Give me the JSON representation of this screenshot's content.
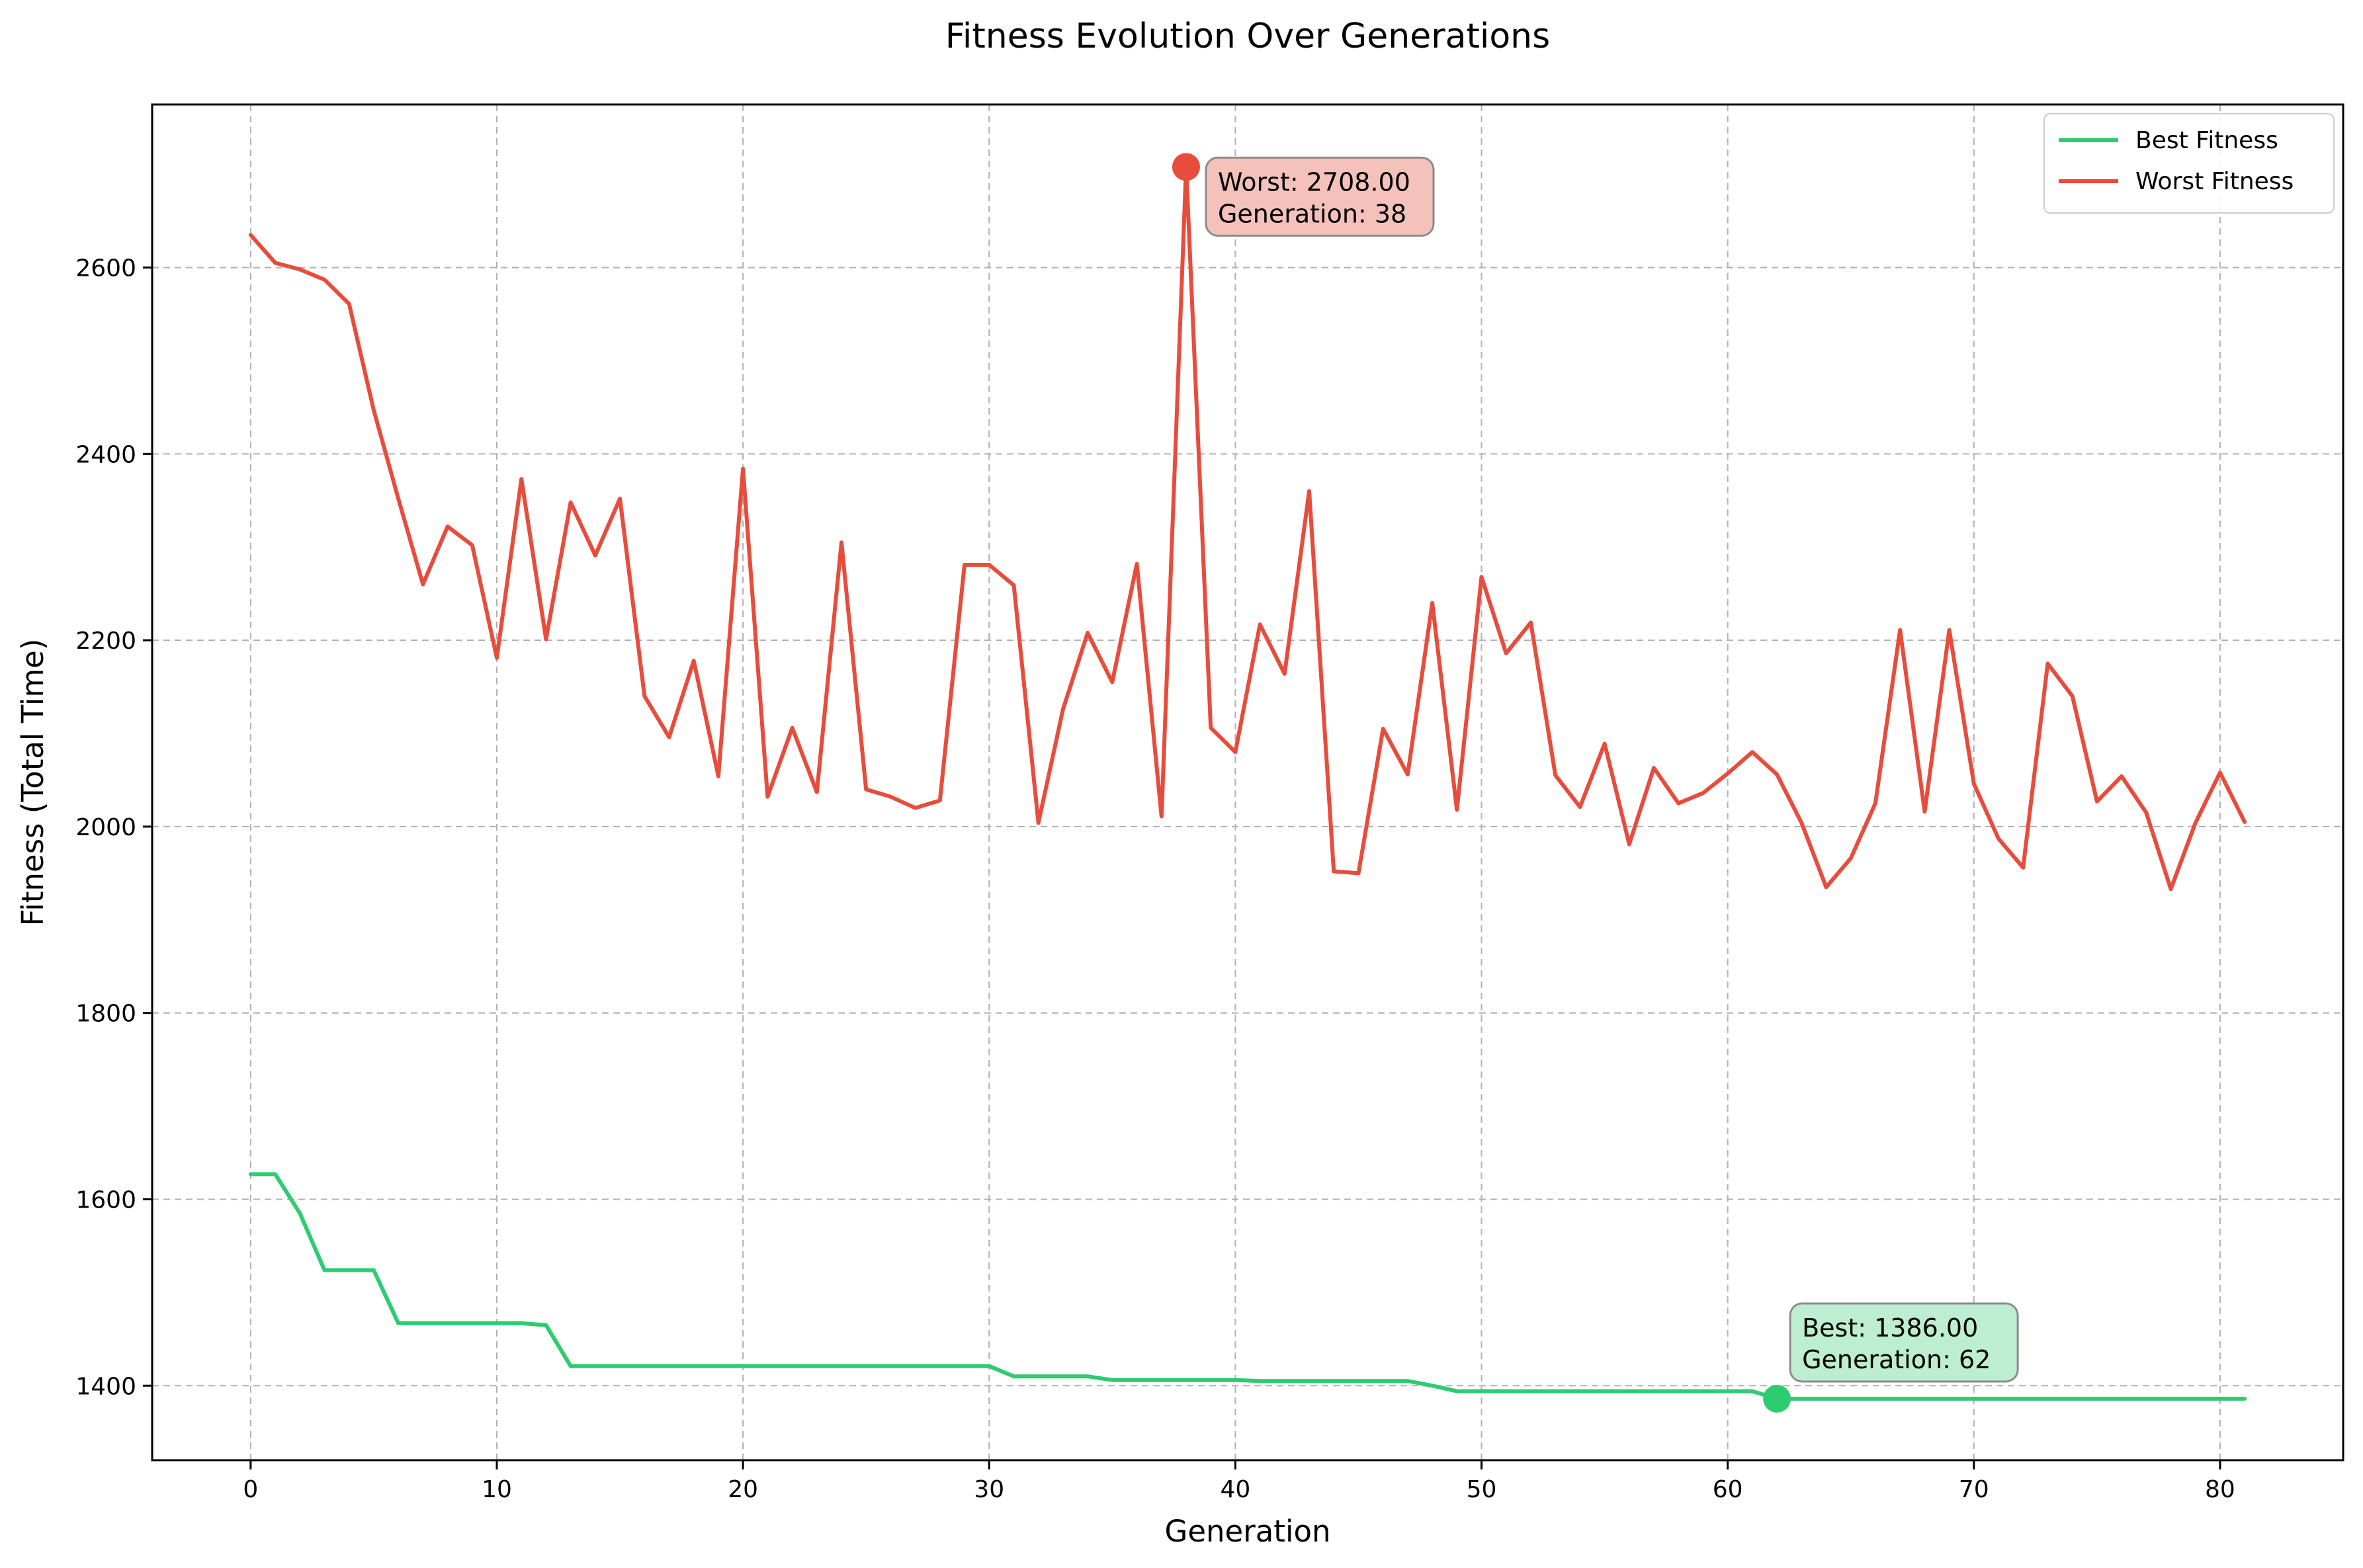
{
  "chart_data": {
    "type": "line",
    "title": "Fitness Evolution Over Generations",
    "xlabel": "Generation",
    "ylabel": "Fitness (Total Time)",
    "xlim": [
      -4,
      85
    ],
    "ylim": [
      1320,
      2775
    ],
    "xticks": [
      0,
      10,
      20,
      30,
      40,
      50,
      60,
      70,
      80
    ],
    "yticks": [
      1400,
      1600,
      1800,
      2000,
      2200,
      2400,
      2600
    ],
    "grid": true,
    "legend_position": "top-right",
    "series": [
      {
        "name": "Best Fitness",
        "color": "#2ecc71",
        "values": [
          1627,
          1627,
          1585,
          1524,
          1524,
          1524,
          1467,
          1467,
          1467,
          1467,
          1467,
          1467,
          1465,
          1421,
          1421,
          1421,
          1421,
          1421,
          1421,
          1421,
          1421,
          1421,
          1421,
          1421,
          1421,
          1421,
          1421,
          1421,
          1421,
          1421,
          1421,
          1410,
          1410,
          1410,
          1410,
          1406,
          1406,
          1406,
          1406,
          1406,
          1406,
          1405,
          1405,
          1405,
          1405,
          1405,
          1405,
          1405,
          1400,
          1394,
          1394,
          1394,
          1394,
          1394,
          1394,
          1394,
          1394,
          1394,
          1394,
          1394,
          1394,
          1394,
          1386,
          1386,
          1386,
          1386,
          1386,
          1386,
          1386,
          1386,
          1386,
          1386,
          1386,
          1386,
          1386,
          1386,
          1386,
          1386,
          1386,
          1386,
          1386,
          1386
        ]
      },
      {
        "name": "Worst Fitness",
        "color": "#e74c3c",
        "values": [
          2635,
          2605,
          2598,
          2587,
          2561,
          2447,
          2352,
          2260,
          2322,
          2302,
          2181,
          2373,
          2201,
          2348,
          2291,
          2352,
          2140,
          2096,
          2178,
          2054,
          2384,
          2032,
          2106,
          2037,
          2305,
          2040,
          2032,
          2020,
          2028,
          2281,
          2281,
          2259,
          2004,
          2126,
          2208,
          2155,
          2282,
          2011,
          2708,
          2106,
          2080,
          2217,
          2164,
          2360,
          1952,
          1950,
          2105,
          2056,
          2240,
          2018,
          2268,
          2186,
          2219,
          2055,
          2021,
          2089,
          1981,
          2063,
          2025,
          2036,
          2057,
          2080,
          2056,
          2004,
          1935,
          1966,
          2025,
          2211,
          2016,
          2211,
          2046,
          1987,
          1956,
          2175,
          2140,
          2027,
          2054,
          2015,
          1933,
          2004,
          2058,
          2005
        ]
      }
    ],
    "annotations": [
      {
        "series": "Worst Fitness",
        "x": 38,
        "y": 2708,
        "line1": "Worst: 2708.00",
        "line2": "Generation: 38",
        "color": "#e74c3c",
        "box_fill": "#f5c1bb"
      },
      {
        "series": "Best Fitness",
        "x": 62,
        "y": 1386,
        "line1": "Best: 1386.00",
        "line2": "Generation: 62",
        "color": "#2ecc71",
        "box_fill": "#bdeed1"
      }
    ]
  }
}
